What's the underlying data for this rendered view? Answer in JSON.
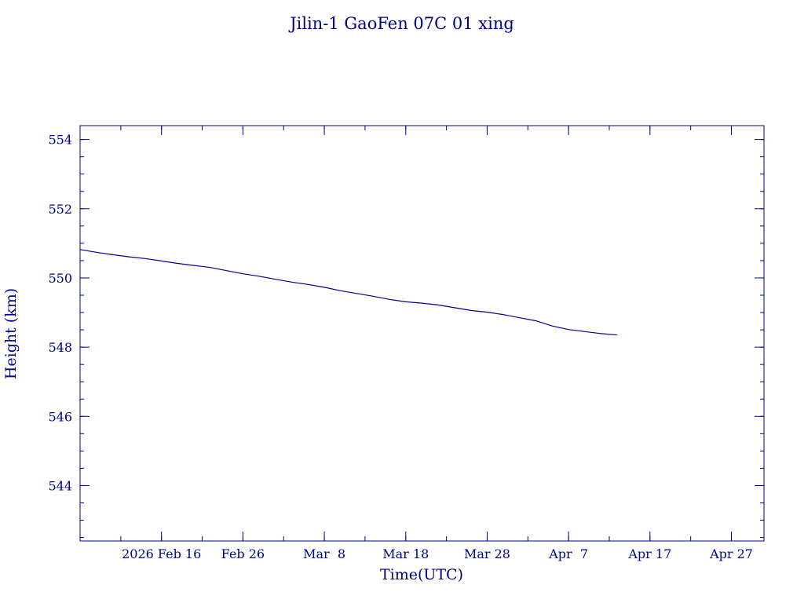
{
  "chart_data": {
    "type": "line",
    "title": "Jilin-1 GaoFen 07C 01 xing",
    "xlabel": "Time(UTC)",
    "ylabel": "Height (km)",
    "xlim": [
      "2026-02-06",
      "2026-05-01"
    ],
    "ylim": [
      542.4,
      554.4
    ],
    "yticks": [
      544,
      546,
      548,
      550,
      552,
      554
    ],
    "y_minor_step": 0.5,
    "x_minor_step_days": 5,
    "xticks": [
      {
        "date": "2026-02-16",
        "label": "2026 Feb 16"
      },
      {
        "date": "2026-02-26",
        "label": "Feb 26"
      },
      {
        "date": "2026-03-08",
        "label": "Mar  8"
      },
      {
        "date": "2026-03-18",
        "label": "Mar 18"
      },
      {
        "date": "2026-03-28",
        "label": "Mar 28"
      },
      {
        "date": "2026-04-07",
        "label": "Apr  7"
      },
      {
        "date": "2026-04-17",
        "label": "Apr 17"
      },
      {
        "date": "2026-04-27",
        "label": "Apr 27"
      }
    ],
    "grid": false,
    "color": "#00008b",
    "series": [
      {
        "x": [
          "2026-02-06",
          "2026-02-08",
          "2026-02-10",
          "2026-02-12",
          "2026-02-14",
          "2026-02-16",
          "2026-02-18",
          "2026-02-20",
          "2026-02-22",
          "2026-02-24",
          "2026-02-26",
          "2026-02-28",
          "2026-03-02",
          "2026-03-04",
          "2026-03-06",
          "2026-03-08",
          "2026-03-10",
          "2026-03-12",
          "2026-03-14",
          "2026-03-16",
          "2026-03-18",
          "2026-03-20",
          "2026-03-22",
          "2026-03-24",
          "2026-03-26",
          "2026-03-28",
          "2026-03-30",
          "2026-04-01",
          "2026-04-03",
          "2026-04-05",
          "2026-04-07",
          "2026-04-09",
          "2026-04-11",
          "2026-04-13"
        ],
        "y": [
          550.82,
          550.74,
          550.67,
          550.61,
          550.56,
          550.49,
          550.42,
          550.36,
          550.3,
          550.21,
          550.12,
          550.05,
          549.96,
          549.88,
          549.81,
          549.73,
          549.63,
          549.55,
          549.47,
          549.38,
          549.31,
          549.27,
          549.22,
          549.14,
          549.06,
          549.01,
          548.94,
          548.85,
          548.76,
          548.61,
          548.51,
          548.45,
          548.39,
          548.35
        ]
      }
    ]
  }
}
